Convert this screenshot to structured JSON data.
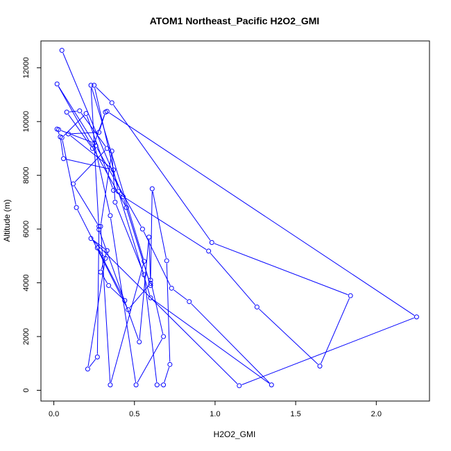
{
  "chart_data": {
    "type": "line",
    "title": "ATOM1 Northeast_Pacific H2O2_GMI",
    "xlabel": "H2O2_GMI",
    "ylabel": "Altitude (m)",
    "xlim": [
      -0.08,
      2.33
    ],
    "ylim": [
      -400,
      13000
    ],
    "xticks": [
      0.0,
      0.5,
      1.0,
      1.5,
      2.0
    ],
    "xtick_labels": [
      "0.0",
      "0.5",
      "1.0",
      "1.5",
      "2.0"
    ],
    "yticks": [
      0,
      2000,
      4000,
      6000,
      8000,
      10000,
      12000
    ],
    "ytick_labels": [
      "0",
      "2000",
      "4000",
      "6000",
      "8000",
      "10000",
      "12000"
    ],
    "grid": false,
    "legend": "none",
    "color": "#0000ff",
    "series": [
      {
        "x": [
          0.05,
          0.43,
          0.6,
          0.45,
          0.02,
          0.26,
          0.55,
          0.73,
          0.84,
          1.35,
          0.6,
          0.4,
          0.25,
          0.36,
          0.98,
          1.84,
          1.65,
          1.26,
          0.96,
          0.37,
          0.2,
          0.05,
          0.14,
          0.46,
          0.6,
          0.59,
          0.53,
          0.28,
          0.23,
          0.56,
          0.35,
          0.29,
          0.36,
          0.38,
          0.56,
          0.64,
          0.68,
          0.72,
          0.7,
          0.61,
          0.6,
          0.68,
          0.51,
          0.35,
          0.25,
          0.03,
          0.02,
          0.04,
          0.06,
          0.37,
          0.09,
          0.28,
          0.32,
          0.24,
          0.08,
          0.16,
          0.33,
          0.12,
          0.28,
          0.27,
          0.21,
          0.32,
          0.27,
          0.44,
          0.34,
          0.29,
          0.33,
          0.23,
          1.15,
          2.25,
          0.33
        ],
        "y": [
          12650,
          7200,
          3900,
          6800,
          11400,
          9100,
          6000,
          3800,
          3300,
          200,
          3440,
          7400,
          11350,
          10700,
          5500,
          3520,
          900,
          3100,
          5180,
          7440,
          10300,
          9400,
          6800,
          3000,
          3980,
          5700,
          1800,
          5980,
          11350,
          4800,
          200,
          6100,
          8900,
          7000,
          4300,
          200,
          200,
          960,
          4820,
          7500,
          4100,
          2000,
          200,
          6500,
          9200,
          9700,
          9720,
          9430,
          8620,
          8200,
          9540,
          9600,
          10350,
          9000,
          10350,
          10400,
          9000,
          7680,
          6100,
          1240,
          790,
          4910,
          5300,
          3340,
          3900,
          4400,
          5200,
          5650,
          170,
          2730,
          10380
        ]
      }
    ]
  }
}
